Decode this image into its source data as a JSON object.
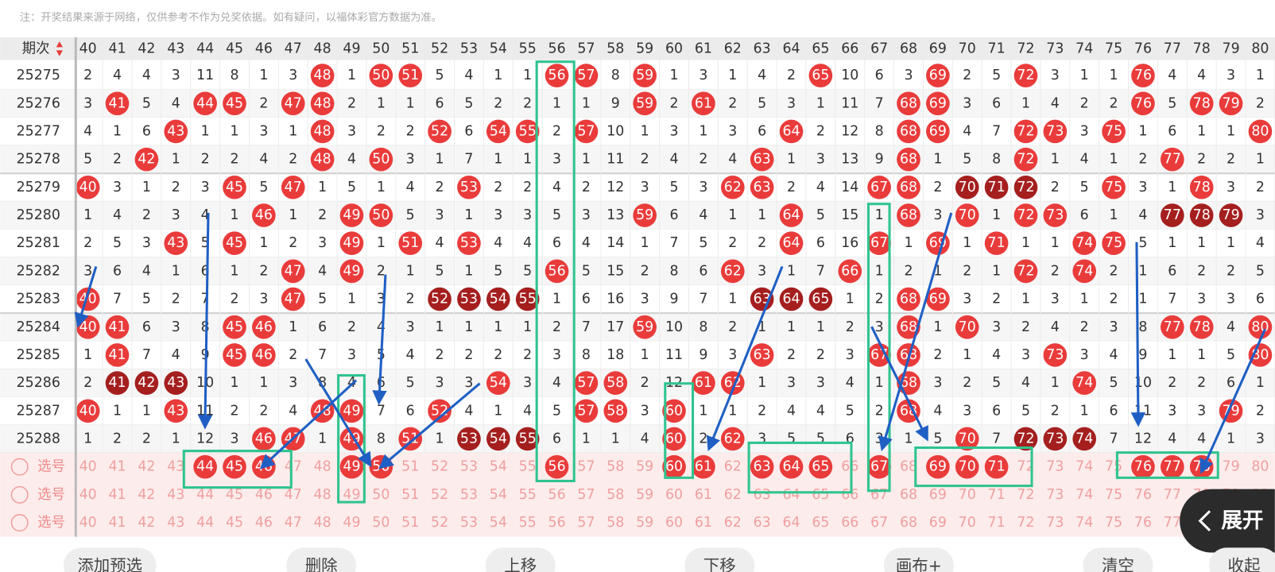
{
  "notice": "注：开奖结果来源于网络，仅供参考不作为兑奖依据。如有疑问，以福体彩官方数据为准。",
  "table": {
    "header": "期次",
    "columns": [
      40,
      41,
      42,
      43,
      44,
      45,
      46,
      47,
      48,
      49,
      50,
      51,
      52,
      53,
      54,
      55,
      56,
      57,
      58,
      59,
      60,
      61,
      62,
      63,
      64,
      65,
      66,
      67,
      68,
      69,
      70,
      71,
      72,
      73,
      74,
      75,
      76,
      77,
      78,
      79,
      80
    ],
    "rows": [
      {
        "period": "25275",
        "values": [
          2,
          4,
          4,
          3,
          11,
          8,
          1,
          3,
          48,
          1,
          50,
          51,
          5,
          4,
          1,
          1,
          56,
          57,
          8,
          59,
          1,
          3,
          1,
          4,
          2,
          65,
          10,
          6,
          3,
          69,
          2,
          5,
          72,
          3,
          1,
          1,
          76,
          4,
          4,
          3,
          1
        ]
      },
      {
        "period": "25276",
        "values": [
          3,
          41,
          5,
          4,
          44,
          45,
          2,
          47,
          48,
          2,
          1,
          1,
          6,
          5,
          2,
          2,
          1,
          1,
          9,
          59,
          2,
          61,
          2,
          5,
          3,
          1,
          11,
          7,
          68,
          69,
          3,
          6,
          1,
          4,
          2,
          2,
          76,
          5,
          78,
          79,
          2
        ]
      },
      {
        "period": "25277",
        "values": [
          4,
          1,
          6,
          43,
          1,
          1,
          3,
          1,
          48,
          3,
          2,
          2,
          52,
          6,
          54,
          55,
          2,
          57,
          10,
          1,
          3,
          1,
          3,
          6,
          64,
          2,
          12,
          8,
          68,
          69,
          4,
          7,
          72,
          73,
          3,
          75,
          1,
          6,
          1,
          1,
          80
        ]
      },
      {
        "period": "25278",
        "values": [
          5,
          2,
          42,
          1,
          2,
          2,
          4,
          2,
          48,
          4,
          50,
          3,
          1,
          7,
          1,
          1,
          3,
          1,
          11,
          2,
          4,
          2,
          4,
          63,
          1,
          3,
          13,
          9,
          68,
          1,
          5,
          8,
          72,
          1,
          4,
          1,
          2,
          77,
          2,
          2,
          1
        ]
      },
      {
        "period": "25279",
        "values": [
          40,
          3,
          1,
          2,
          3,
          45,
          5,
          47,
          1,
          5,
          1,
          4,
          2,
          53,
          2,
          2,
          4,
          2,
          12,
          3,
          5,
          3,
          62,
          63,
          2,
          4,
          14,
          67,
          68,
          2,
          70,
          71,
          72,
          2,
          5,
          75,
          3,
          1,
          78,
          3,
          2
        ],
        "dark": [
          70,
          71,
          72
        ]
      },
      {
        "period": "25280",
        "values": [
          1,
          4,
          2,
          3,
          4,
          1,
          46,
          1,
          2,
          49,
          50,
          5,
          3,
          1,
          3,
          3,
          5,
          3,
          13,
          59,
          6,
          4,
          1,
          1,
          64,
          5,
          15,
          1,
          68,
          3,
          70,
          1,
          72,
          73,
          6,
          1,
          4,
          77,
          78,
          79,
          3
        ],
        "dark": [
          77,
          78,
          79
        ]
      },
      {
        "period": "25281",
        "values": [
          2,
          5,
          3,
          43,
          5,
          45,
          1,
          2,
          3,
          49,
          1,
          51,
          4,
          53,
          4,
          4,
          6,
          4,
          14,
          1,
          7,
          5,
          2,
          2,
          64,
          6,
          16,
          67,
          1,
          69,
          1,
          71,
          1,
          1,
          74,
          75,
          5,
          1,
          1,
          1,
          4
        ]
      },
      {
        "period": "25282",
        "values": [
          3,
          6,
          4,
          1,
          6,
          1,
          2,
          47,
          4,
          49,
          2,
          1,
          5,
          1,
          5,
          5,
          56,
          5,
          15,
          2,
          8,
          6,
          62,
          3,
          1,
          7,
          66,
          1,
          2,
          1,
          2,
          1,
          72,
          2,
          74,
          2,
          1,
          6,
          2,
          2,
          5
        ]
      },
      {
        "period": "25283",
        "values": [
          40,
          7,
          5,
          2,
          7,
          2,
          3,
          47,
          5,
          1,
          3,
          2,
          52,
          53,
          54,
          55,
          1,
          6,
          16,
          3,
          9,
          7,
          1,
          63,
          64,
          65,
          1,
          2,
          68,
          69,
          3,
          2,
          1,
          3,
          1,
          2,
          1,
          7,
          3,
          3,
          6
        ],
        "dark": [
          52,
          53,
          54,
          55,
          63,
          64,
          65
        ]
      },
      {
        "period": "25284",
        "values": [
          40,
          41,
          6,
          3,
          8,
          45,
          46,
          1,
          6,
          2,
          4,
          3,
          1,
          1,
          1,
          1,
          2,
          7,
          17,
          59,
          10,
          8,
          2,
          1,
          1,
          1,
          2,
          3,
          68,
          1,
          70,
          3,
          2,
          4,
          2,
          3,
          8,
          77,
          78,
          4,
          80
        ]
      },
      {
        "period": "25285",
        "values": [
          1,
          41,
          7,
          4,
          9,
          45,
          46,
          2,
          7,
          3,
          5,
          4,
          2,
          2,
          2,
          2,
          3,
          8,
          18,
          1,
          11,
          9,
          3,
          63,
          2,
          2,
          3,
          67,
          68,
          2,
          1,
          4,
          3,
          73,
          3,
          4,
          9,
          1,
          1,
          5,
          80
        ]
      },
      {
        "period": "25286",
        "values": [
          2,
          41,
          42,
          43,
          10,
          1,
          1,
          3,
          8,
          4,
          6,
          5,
          3,
          3,
          54,
          3,
          4,
          57,
          58,
          2,
          12,
          61,
          62,
          1,
          3,
          3,
          4,
          1,
          68,
          3,
          2,
          5,
          4,
          1,
          74,
          5,
          10,
          2,
          2,
          6,
          1
        ],
        "dark": [
          41,
          42,
          43
        ]
      },
      {
        "period": "25287",
        "values": [
          40,
          1,
          1,
          43,
          11,
          2,
          2,
          4,
          48,
          49,
          7,
          6,
          52,
          4,
          1,
          4,
          5,
          57,
          58,
          3,
          60,
          1,
          1,
          2,
          4,
          4,
          5,
          2,
          68,
          4,
          3,
          6,
          5,
          2,
          1,
          6,
          11,
          3,
          3,
          79,
          2
        ]
      },
      {
        "period": "25288",
        "values": [
          1,
          2,
          2,
          1,
          12,
          3,
          46,
          47,
          1,
          49,
          8,
          51,
          1,
          53,
          54,
          55,
          6,
          1,
          1,
          4,
          60,
          2,
          62,
          3,
          5,
          5,
          6,
          3,
          1,
          5,
          70,
          7,
          72,
          73,
          74,
          7,
          12,
          4,
          4,
          1,
          3
        ],
        "dark": [
          53,
          54,
          55,
          72,
          73,
          74
        ]
      }
    ]
  },
  "picker": [
    {
      "label": "选号",
      "selected": [
        44,
        45,
        46,
        49,
        50,
        56,
        60,
        61,
        63,
        64,
        65,
        67,
        69,
        70,
        71,
        76,
        77,
        78
      ]
    },
    {
      "label": "选号"
    },
    {
      "label": "选号"
    }
  ],
  "buttons": [
    "添加预选",
    "删除",
    "上移",
    "下移",
    "画布+",
    "清空",
    "收起"
  ],
  "expand": "展开"
}
